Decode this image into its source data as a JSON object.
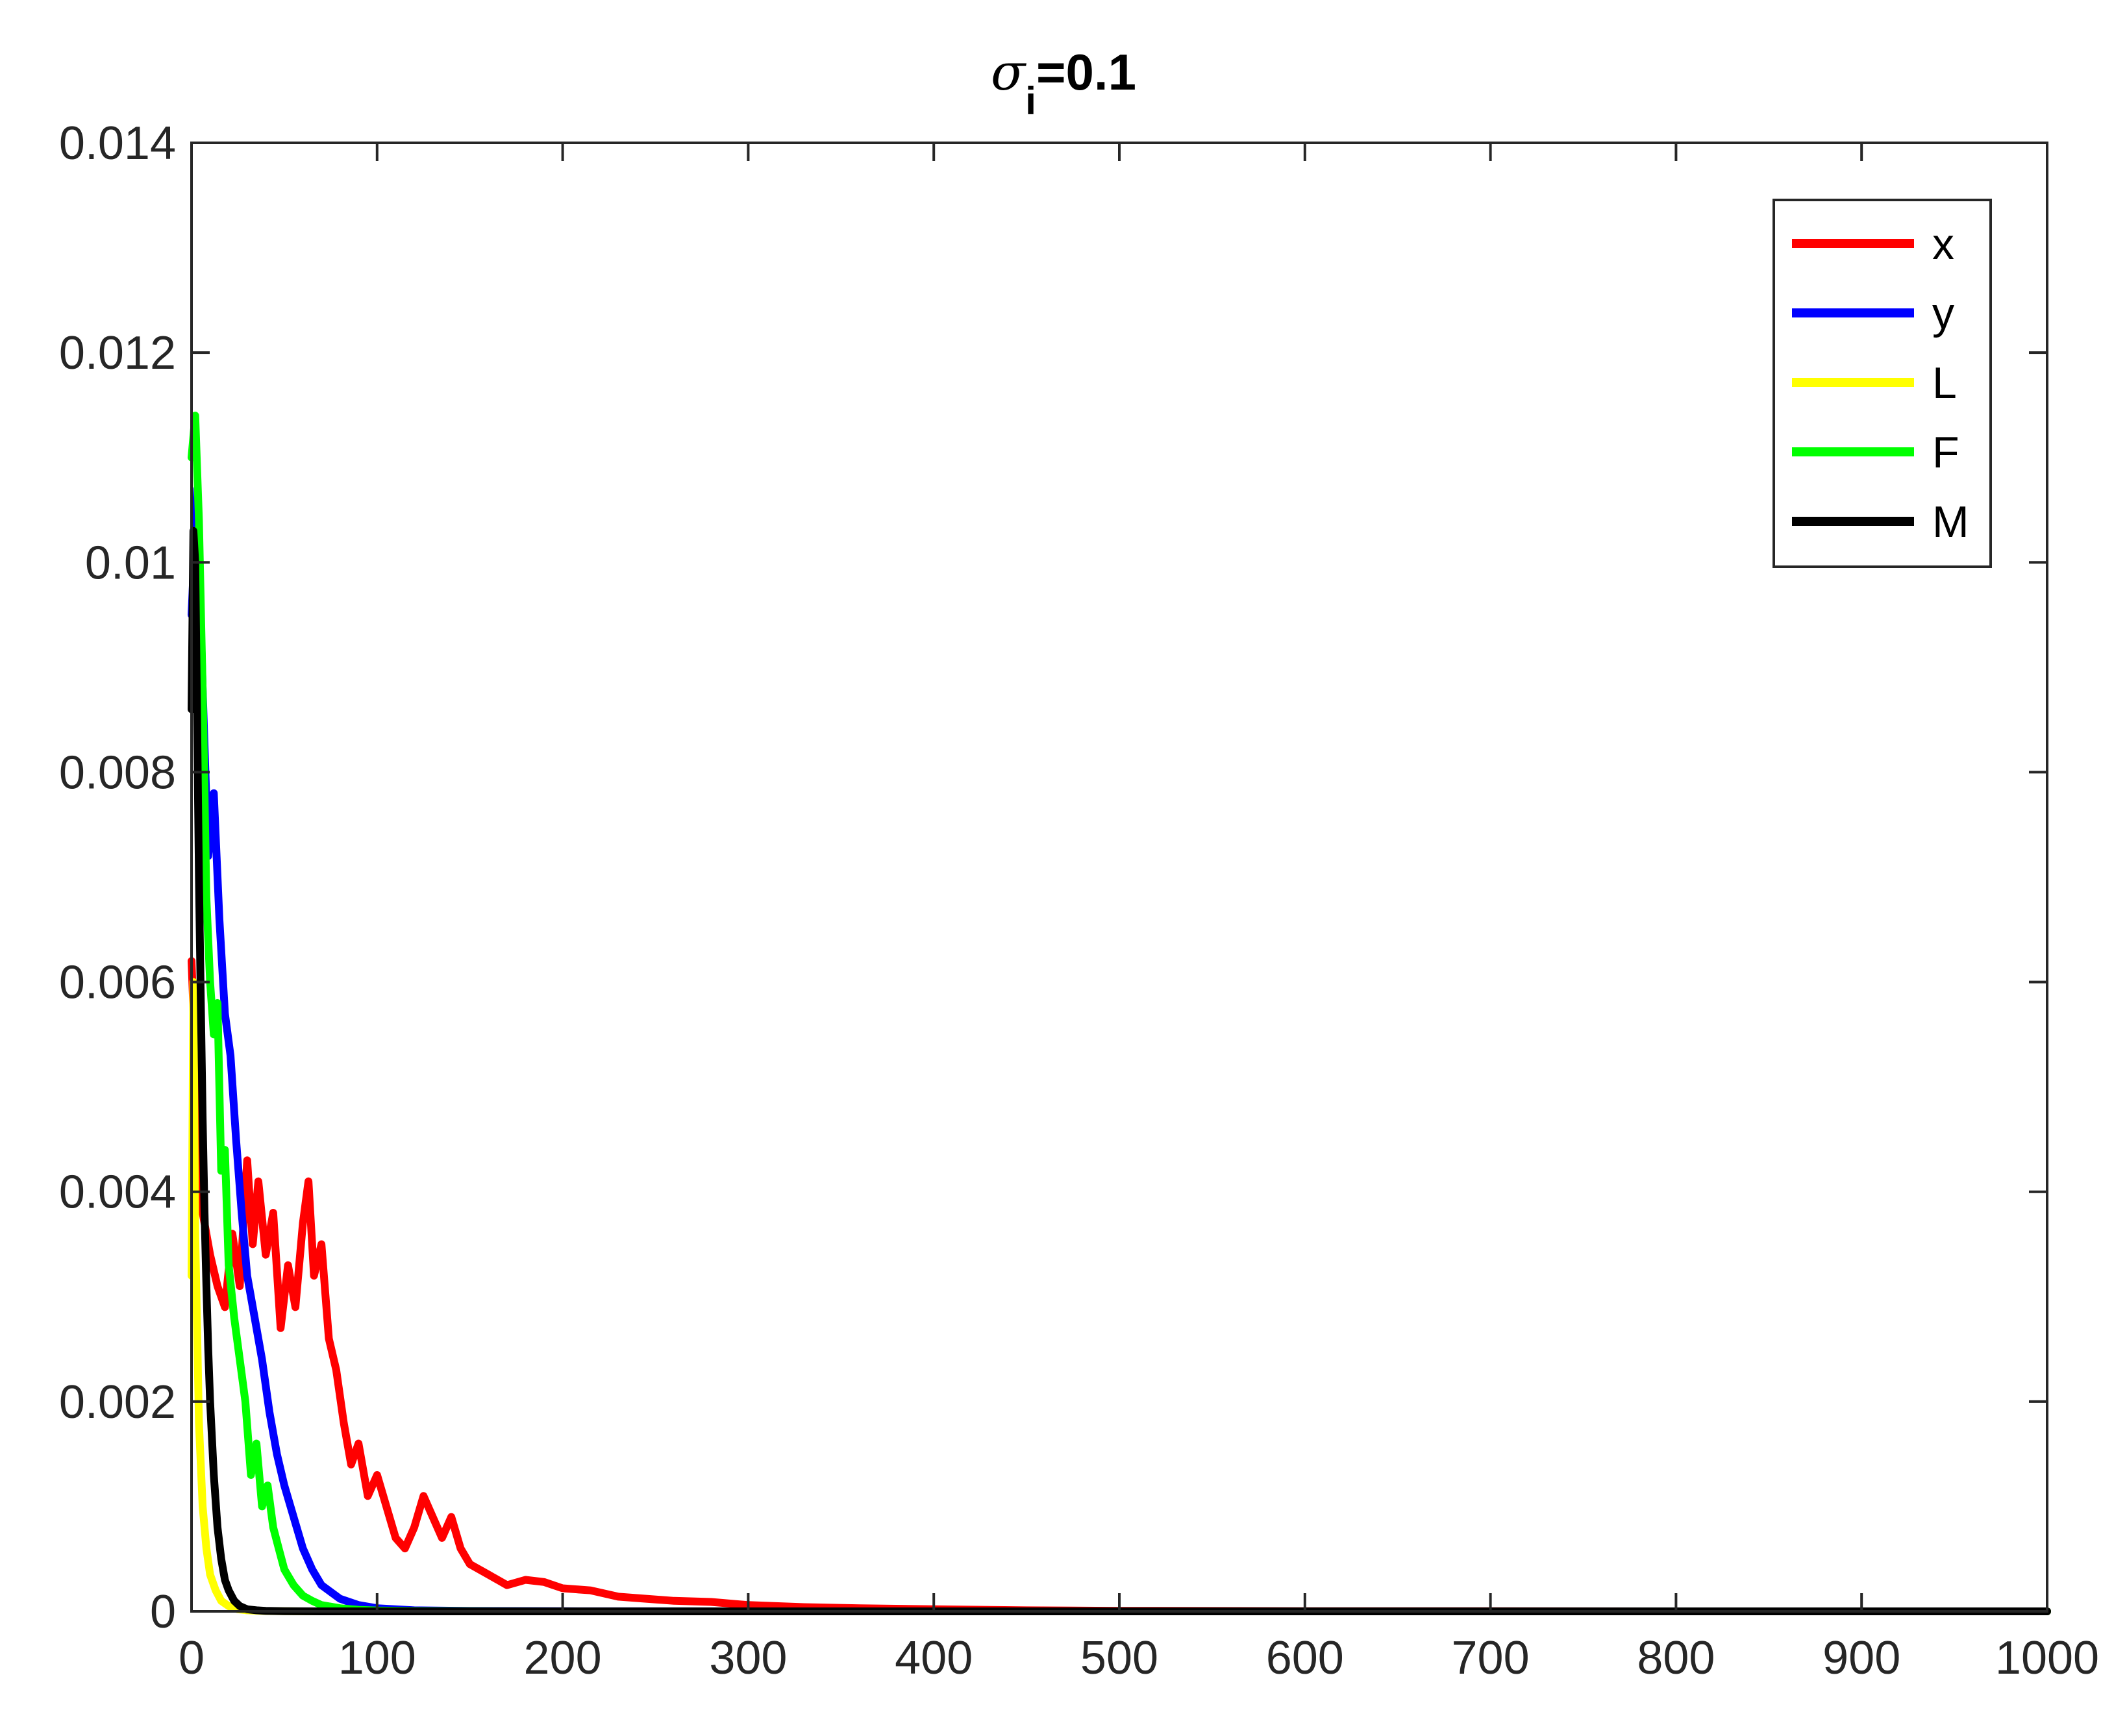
{
  "chart_data": {
    "type": "line",
    "title_symbol": "σ",
    "title_subscript": "i",
    "title_suffix": "=0.1",
    "xlabel": "",
    "ylabel": "",
    "xlim": [
      0,
      1000
    ],
    "ylim": [
      0,
      0.014
    ],
    "xticks": [
      0,
      100,
      200,
      300,
      400,
      500,
      600,
      700,
      800,
      900,
      1000
    ],
    "xtick_labels": [
      "0",
      "100",
      "200",
      "300",
      "400",
      "500",
      "600",
      "700",
      "800",
      "900",
      "1000"
    ],
    "yticks": [
      0,
      0.002,
      0.004,
      0.006,
      0.008,
      0.01,
      0.012,
      0.014
    ],
    "ytick_labels": [
      "0",
      "0.002",
      "0.004",
      "0.006",
      "0.008",
      "0.01",
      "0.012",
      "0.014"
    ],
    "grid": false,
    "legend_position": "top-right",
    "series": [
      {
        "name": "x",
        "color": "#ff0000",
        "x": [
          0,
          3,
          6,
          10,
          14,
          18,
          22,
          26,
          30,
          33,
          36,
          40,
          44,
          48,
          52,
          56,
          60,
          63,
          66,
          70,
          74,
          78,
          82,
          86,
          90,
          95,
          100,
          105,
          110,
          115,
          120,
          125,
          130,
          135,
          140,
          145,
          150,
          160,
          170,
          180,
          190,
          200,
          215,
          230,
          245,
          260,
          280,
          300,
          330,
          360,
          400,
          450,
          500,
          600,
          700,
          800,
          900,
          1000
        ],
        "y": [
          0.0062,
          0.0048,
          0.0038,
          0.0034,
          0.0031,
          0.0029,
          0.0036,
          0.0031,
          0.0043,
          0.0035,
          0.0041,
          0.0034,
          0.0038,
          0.0027,
          0.0033,
          0.0029,
          0.0037,
          0.0041,
          0.0032,
          0.0035,
          0.0026,
          0.0023,
          0.0018,
          0.0014,
          0.0016,
          0.0011,
          0.0013,
          0.001,
          0.0007,
          0.0006,
          0.0008,
          0.0011,
          0.0009,
          0.0007,
          0.0009,
          0.0006,
          0.00045,
          0.00035,
          0.00025,
          0.0003,
          0.00028,
          0.00022,
          0.0002,
          0.00014,
          0.00012,
          0.0001,
          9e-05,
          6e-05,
          4e-05,
          3e-05,
          2e-05,
          1e-05,
          5e-06,
          2e-06,
          1e-06,
          0.0,
          0.0,
          0.0
        ]
      },
      {
        "name": "y",
        "color": "#0000ff",
        "x": [
          0,
          3,
          6,
          9,
          12,
          15,
          18,
          21,
          24,
          27,
          30,
          34,
          38,
          42,
          46,
          50,
          55,
          60,
          65,
          70,
          80,
          90,
          100,
          120,
          150,
          200,
          300,
          500,
          1000
        ],
        "y": [
          0.0095,
          0.0107,
          0.0088,
          0.0072,
          0.0078,
          0.0066,
          0.0057,
          0.0053,
          0.0045,
          0.0038,
          0.0032,
          0.0028,
          0.0024,
          0.0019,
          0.0015,
          0.0012,
          0.0009,
          0.0006,
          0.0004,
          0.00025,
          0.00012,
          6e-05,
          3e-05,
          1e-05,
          4e-06,
          1e-06,
          0.0,
          0.0,
          0.0
        ]
      },
      {
        "name": "L",
        "color": "#ffff00",
        "x": [
          0,
          1,
          2,
          4,
          6,
          8,
          10,
          13,
          16,
          20,
          25,
          30,
          40,
          60,
          100,
          1000
        ],
        "y": [
          0.0032,
          0.006,
          0.0036,
          0.0018,
          0.001,
          0.0006,
          0.00035,
          0.0002,
          0.0001,
          5e-05,
          2e-05,
          1e-05,
          3e-06,
          0.0,
          0.0,
          0.0
        ]
      },
      {
        "name": "F",
        "color": "#00ff00",
        "x": [
          0,
          2,
          4,
          6,
          8,
          10,
          12,
          14,
          16,
          18,
          20,
          23,
          26,
          29,
          32,
          35,
          38,
          41,
          44,
          47,
          50,
          55,
          60,
          65,
          70,
          80,
          90,
          100,
          120,
          150,
          200,
          300,
          500,
          1000
        ],
        "y": [
          0.011,
          0.0114,
          0.0104,
          0.0088,
          0.0068,
          0.006,
          0.0055,
          0.0058,
          0.0042,
          0.0044,
          0.0033,
          0.0028,
          0.0024,
          0.002,
          0.0013,
          0.0016,
          0.001,
          0.0012,
          0.0008,
          0.0006,
          0.0004,
          0.00025,
          0.00015,
          0.0001,
          6e-05,
          3e-05,
          1.5e-05,
          8e-06,
          3e-06,
          1e-06,
          0.0,
          0.0,
          0.0,
          0.0
        ]
      },
      {
        "name": "M",
        "color": "#000000",
        "x": [
          0,
          1,
          2,
          3,
          4,
          5,
          6,
          7,
          8,
          9,
          10,
          12,
          14,
          16,
          18,
          20,
          23,
          26,
          30,
          35,
          40,
          50,
          70,
          100,
          1000
        ],
        "y": [
          0.0086,
          0.0103,
          0.01,
          0.0085,
          0.007,
          0.0058,
          0.0047,
          0.0038,
          0.0031,
          0.0025,
          0.002,
          0.0013,
          0.0008,
          0.0005,
          0.0003,
          0.0002,
          0.0001,
          5e-05,
          2e-05,
          1e-05,
          5e-06,
          1e-06,
          0.0,
          0.0,
          0.0
        ]
      }
    ]
  }
}
